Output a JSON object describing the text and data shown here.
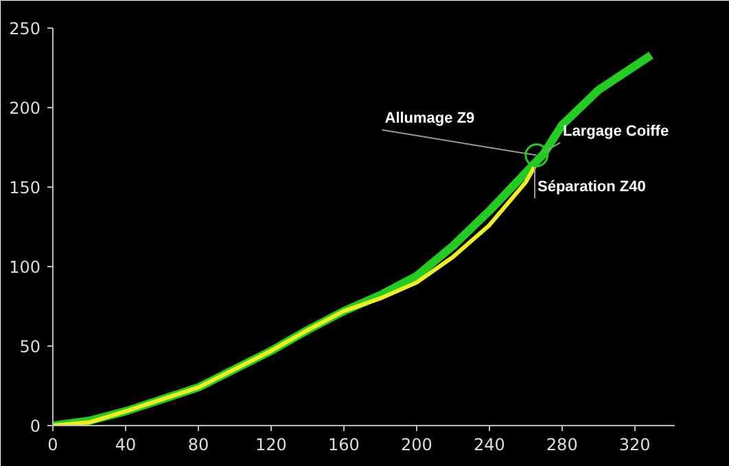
{
  "chart_data": {
    "type": "line",
    "xlim": [
      0,
      342
    ],
    "ylim": [
      0,
      250
    ],
    "xticks": [
      0,
      40,
      80,
      120,
      160,
      200,
      240,
      280,
      320
    ],
    "yticks": [
      0,
      50,
      100,
      150,
      200,
      250
    ],
    "grid": false,
    "marker": "none",
    "line_style": "solid",
    "series": [
      {
        "color": "#22cc22",
        "x": [
          0,
          20,
          40,
          80,
          120,
          140,
          160,
          180,
          200,
          220,
          240,
          260,
          270,
          280,
          300,
          329
        ],
        "values": [
          0,
          3,
          9,
          24,
          47,
          60,
          72,
          82,
          94,
          113,
          135,
          159,
          171,
          189,
          211,
          233
        ]
      },
      {
        "color": "#eeee22",
        "x": [
          0,
          20,
          40,
          80,
          120,
          140,
          160,
          180,
          200,
          220,
          240,
          260,
          265
        ],
        "values": [
          0,
          2,
          9,
          24,
          47,
          60,
          72,
          80,
          90,
          106,
          126,
          153,
          163
        ]
      }
    ],
    "annotations": [
      {
        "text": "Allumage Z9",
        "x": 266,
        "y": 170
      },
      {
        "text": "Largage Coiffe",
        "x": 270,
        "y": 172
      },
      {
        "text": "Séparation Z40",
        "x": 265,
        "y": 163
      }
    ]
  }
}
